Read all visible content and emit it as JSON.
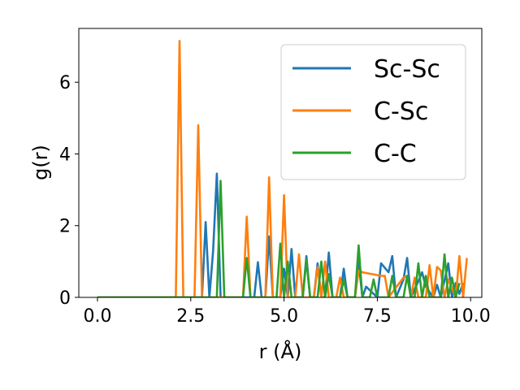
{
  "chart_data": {
    "type": "line",
    "xlabel": "r (Å)",
    "ylabel": "g(r)",
    "xlim": [
      -0.5,
      10.3
    ],
    "ylim": [
      0,
      7.5
    ],
    "x_ticks": [
      0.0,
      2.5,
      5.0,
      7.5,
      10.0
    ],
    "x_tick_labels": [
      "0.0",
      "2.5",
      "5.0",
      "7.5",
      "10.0"
    ],
    "y_ticks": [
      0,
      2,
      4,
      6
    ],
    "y_tick_labels": [
      "0",
      "2",
      "4",
      "6"
    ],
    "grid": false,
    "legend_position": "top-right",
    "series": [
      {
        "name": "Sc-Sc",
        "color": "#1f77b4",
        "points": [
          [
            0,
            0
          ],
          [
            2.8,
            0
          ],
          [
            2.9,
            2.1
          ],
          [
            3.0,
            0
          ],
          [
            3.1,
            1.3
          ],
          [
            3.2,
            3.45
          ],
          [
            3.3,
            0
          ],
          [
            4.1,
            0
          ],
          [
            4.2,
            0
          ],
          [
            4.3,
            0.98
          ],
          [
            4.4,
            0
          ],
          [
            4.5,
            0
          ],
          [
            4.6,
            1.7
          ],
          [
            4.7,
            0
          ],
          [
            4.9,
            0
          ],
          [
            5.0,
            0.8
          ],
          [
            5.1,
            0
          ],
          [
            5.2,
            1.35
          ],
          [
            5.3,
            0
          ],
          [
            5.5,
            0
          ],
          [
            5.6,
            1.15
          ],
          [
            5.7,
            0
          ],
          [
            5.8,
            0
          ],
          [
            5.9,
            0.95
          ],
          [
            6.0,
            0
          ],
          [
            6.1,
            0
          ],
          [
            6.2,
            1.25
          ],
          [
            6.3,
            0
          ],
          [
            6.5,
            0
          ],
          [
            6.6,
            0.8
          ],
          [
            6.7,
            0
          ],
          [
            6.9,
            0
          ],
          [
            7.0,
            1.0
          ],
          [
            7.1,
            0
          ],
          [
            7.2,
            0.3
          ],
          [
            7.5,
            0
          ],
          [
            7.6,
            0.95
          ],
          [
            7.8,
            0.7
          ],
          [
            7.9,
            1.15
          ],
          [
            8.0,
            0
          ],
          [
            8.2,
            0.5
          ],
          [
            8.3,
            1.1
          ],
          [
            8.4,
            0
          ],
          [
            8.6,
            0.45
          ],
          [
            8.7,
            0.7
          ],
          [
            8.8,
            0.3
          ],
          [
            9.0,
            0
          ],
          [
            9.1,
            0.35
          ],
          [
            9.2,
            0
          ],
          [
            9.4,
            0.95
          ],
          [
            9.5,
            0
          ],
          [
            9.6,
            0.4
          ],
          [
            9.7,
            0.1
          ],
          [
            9.8,
            0.4
          ]
        ]
      },
      {
        "name": "C-Sc",
        "color": "#ff7f0e",
        "points": [
          [
            0,
            0
          ],
          [
            2.1,
            0
          ],
          [
            2.2,
            7.15
          ],
          [
            2.3,
            0
          ],
          [
            2.6,
            0
          ],
          [
            2.7,
            4.8
          ],
          [
            2.8,
            0
          ],
          [
            3.9,
            0
          ],
          [
            4.0,
            2.25
          ],
          [
            4.1,
            0
          ],
          [
            4.5,
            0
          ],
          [
            4.6,
            3.35
          ],
          [
            4.7,
            0
          ],
          [
            4.9,
            0
          ],
          [
            5.0,
            2.85
          ],
          [
            5.1,
            0
          ],
          [
            5.3,
            0
          ],
          [
            5.4,
            1.2
          ],
          [
            5.5,
            0
          ],
          [
            5.8,
            0
          ],
          [
            5.9,
            0.85
          ],
          [
            6.0,
            0
          ],
          [
            6.1,
            1.0
          ],
          [
            6.2,
            0
          ],
          [
            6.4,
            0
          ],
          [
            6.5,
            0.55
          ],
          [
            6.6,
            0
          ],
          [
            6.9,
            0
          ],
          [
            7.0,
            0.75
          ],
          [
            7.1,
            0.7
          ],
          [
            7.6,
            0.6
          ],
          [
            7.7,
            0.6
          ],
          [
            7.8,
            0
          ],
          [
            8.2,
            0.55
          ],
          [
            8.3,
            0.6
          ],
          [
            8.4,
            0
          ],
          [
            8.5,
            0.55
          ],
          [
            8.6,
            0
          ],
          [
            8.8,
            0
          ],
          [
            8.9,
            0.9
          ],
          [
            9.0,
            0
          ],
          [
            9.1,
            0.85
          ],
          [
            9.2,
            0.75
          ],
          [
            9.3,
            0
          ],
          [
            9.4,
            0.5
          ],
          [
            9.6,
            0
          ],
          [
            9.7,
            1.15
          ],
          [
            9.8,
            0
          ],
          [
            9.9,
            1.1
          ]
        ]
      },
      {
        "name": "C-C",
        "color": "#2ca02c",
        "points": [
          [
            0,
            0
          ],
          [
            3.2,
            0
          ],
          [
            3.3,
            3.25
          ],
          [
            3.4,
            0
          ],
          [
            3.9,
            0
          ],
          [
            4.0,
            1.1
          ],
          [
            4.1,
            0
          ],
          [
            4.8,
            0
          ],
          [
            4.9,
            1.5
          ],
          [
            5.0,
            0
          ],
          [
            5.1,
            1.0
          ],
          [
            5.2,
            0
          ],
          [
            5.5,
            0
          ],
          [
            5.6,
            1.05
          ],
          [
            5.7,
            0
          ],
          [
            5.9,
            0
          ],
          [
            6.0,
            1.0
          ],
          [
            6.1,
            0
          ],
          [
            6.2,
            0.65
          ],
          [
            6.3,
            0
          ],
          [
            6.5,
            0
          ],
          [
            6.6,
            0.5
          ],
          [
            6.7,
            0
          ],
          [
            6.9,
            0
          ],
          [
            7.0,
            1.45
          ],
          [
            7.1,
            0
          ],
          [
            7.3,
            0
          ],
          [
            7.4,
            0.5
          ],
          [
            7.5,
            0
          ],
          [
            7.8,
            0
          ],
          [
            7.9,
            0.6
          ],
          [
            8.0,
            0
          ],
          [
            8.2,
            0
          ],
          [
            8.3,
            0.6
          ],
          [
            8.4,
            0
          ],
          [
            8.5,
            0
          ],
          [
            8.6,
            0.95
          ],
          [
            8.7,
            0
          ],
          [
            8.8,
            0.6
          ],
          [
            8.9,
            0
          ],
          [
            9.2,
            0
          ],
          [
            9.3,
            1.2
          ],
          [
            9.4,
            0
          ],
          [
            9.5,
            0.55
          ],
          [
            9.6,
            0
          ],
          [
            9.7,
            0.4
          ]
        ]
      }
    ]
  }
}
